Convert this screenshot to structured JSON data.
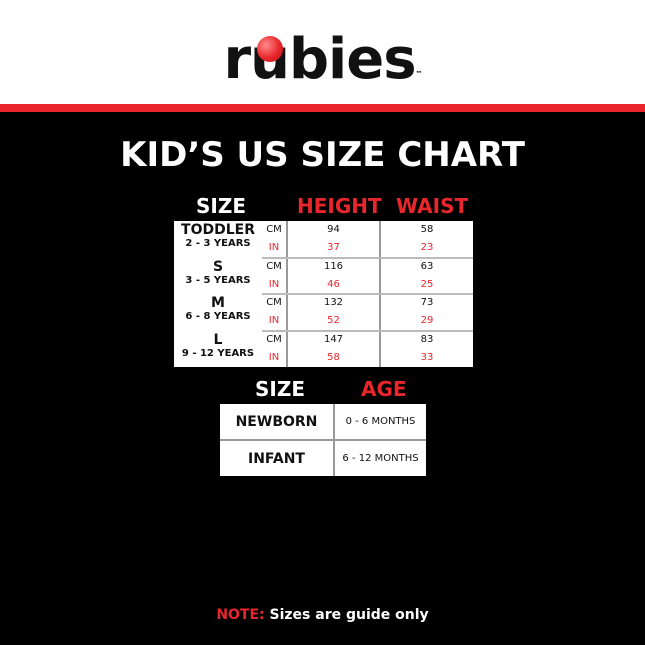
{
  "brand": {
    "logo_text": "rubies",
    "trademark": "™",
    "accent": "#e8262b"
  },
  "title": "KID’S US SIZE CHART",
  "kids_table": {
    "headers": {
      "size": "SIZE",
      "height": "HEIGHT",
      "waist": "WAIST"
    },
    "rows": [
      {
        "size": "TODDLER",
        "age": "2 - 3 YEARS",
        "cm_label": "CM",
        "in_label": "IN",
        "height_cm": "94",
        "height_in": "37",
        "waist_cm": "58",
        "waist_in": "23"
      },
      {
        "size": "S",
        "age": "3 - 5 YEARS",
        "cm_label": "CM",
        "in_label": "IN",
        "height_cm": "116",
        "height_in": "46",
        "waist_cm": "63",
        "waist_in": "25"
      },
      {
        "size": "M",
        "age": "6 - 8 YEARS",
        "cm_label": "CM",
        "in_label": "IN",
        "height_cm": "132",
        "height_in": "52",
        "waist_cm": "73",
        "waist_in": "29"
      },
      {
        "size": "L",
        "age": "9 - 12 YEARS",
        "cm_label": "CM",
        "in_label": "IN",
        "height_cm": "147",
        "height_in": "58",
        "waist_cm": "83",
        "waist_in": "33"
      }
    ]
  },
  "baby_table": {
    "headers": {
      "size": "SIZE",
      "age": "AGE"
    },
    "rows": [
      {
        "size": "NEWBORN",
        "age": "0 - 6 MONTHS"
      },
      {
        "size": "INFANT",
        "age": "6 - 12 MONTHS"
      }
    ]
  },
  "note": {
    "label": "NOTE:",
    "text": " Sizes are guide only"
  }
}
